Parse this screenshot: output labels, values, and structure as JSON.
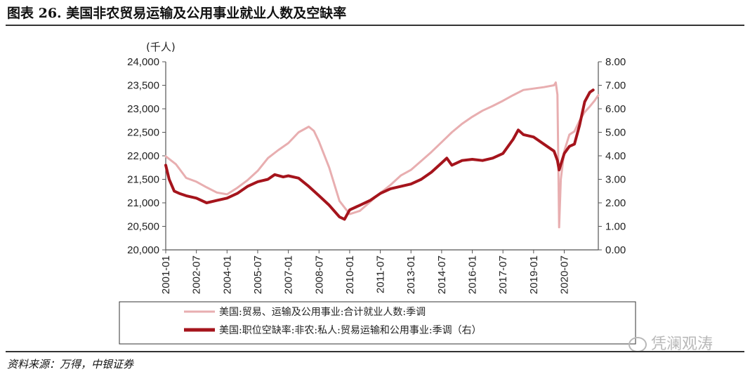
{
  "page": {
    "title": "图表 26. 美国非农贸易运输及公用事业就业人数及空缺率",
    "source": "资料来源：万得，中银证券",
    "watermark": "凭澜观涛",
    "watermark_icon": "wechat-icon"
  },
  "chart_data": {
    "type": "line",
    "y_left_unit": "(千人)",
    "y_left_range": [
      20000,
      24000
    ],
    "y_left_ticks": [
      "20,000",
      "20,500",
      "21,000",
      "21,500",
      "22,000",
      "22,500",
      "23,000",
      "23,500",
      "24,000"
    ],
    "y_right_range": [
      0,
      8
    ],
    "y_right_ticks": [
      "0.00",
      "1.00",
      "2.00",
      "3.00",
      "4.00",
      "5.00",
      "6.00",
      "7.00",
      "8.00"
    ],
    "x_range": [
      "2001-01",
      "2022-03"
    ],
    "x_ticks": [
      "2001-01",
      "2002-07",
      "2004-01",
      "2005-07",
      "2007-01",
      "2008-07",
      "2010-01",
      "2011-07",
      "2013-01",
      "2014-07",
      "2016-01",
      "2017-07",
      "2019-01",
      "2020-07"
    ],
    "series": [
      {
        "name": "美国:贸易、运输及公用事业:合计就业人数:季调",
        "axis": "left",
        "color": "#e8aeb0",
        "points": [
          [
            "2001-01",
            21990
          ],
          [
            "2001-07",
            21820
          ],
          [
            "2002-01",
            21530
          ],
          [
            "2002-07",
            21450
          ],
          [
            "2003-01",
            21330
          ],
          [
            "2003-07",
            21220
          ],
          [
            "2004-01",
            21180
          ],
          [
            "2004-07",
            21320
          ],
          [
            "2005-01",
            21480
          ],
          [
            "2005-07",
            21680
          ],
          [
            "2006-01",
            21950
          ],
          [
            "2006-07",
            22120
          ],
          [
            "2007-01",
            22270
          ],
          [
            "2007-07",
            22500
          ],
          [
            "2008-01",
            22620
          ],
          [
            "2008-04",
            22530
          ],
          [
            "2008-07",
            22300
          ],
          [
            "2009-01",
            21750
          ],
          [
            "2009-07",
            21040
          ],
          [
            "2010-01",
            20760
          ],
          [
            "2010-07",
            20830
          ],
          [
            "2011-01",
            21020
          ],
          [
            "2011-07",
            21210
          ],
          [
            "2012-01",
            21380
          ],
          [
            "2012-07",
            21580
          ],
          [
            "2013-01",
            21700
          ],
          [
            "2013-07",
            21890
          ],
          [
            "2014-01",
            22080
          ],
          [
            "2014-07",
            22290
          ],
          [
            "2015-01",
            22500
          ],
          [
            "2015-07",
            22680
          ],
          [
            "2016-01",
            22830
          ],
          [
            "2016-07",
            22960
          ],
          [
            "2017-01",
            23060
          ],
          [
            "2017-07",
            23170
          ],
          [
            "2018-01",
            23290
          ],
          [
            "2018-07",
            23400
          ],
          [
            "2019-01",
            23430
          ],
          [
            "2019-07",
            23460
          ],
          [
            "2020-01",
            23500
          ],
          [
            "2020-02",
            23560
          ],
          [
            "2020-03",
            23300
          ],
          [
            "2020-04",
            20480
          ],
          [
            "2020-05",
            21500
          ],
          [
            "2020-07",
            22100
          ],
          [
            "2020-10",
            22450
          ],
          [
            "2021-01",
            22520
          ],
          [
            "2021-04",
            22750
          ],
          [
            "2021-07",
            22930
          ],
          [
            "2021-10",
            23050
          ],
          [
            "2022-01",
            23180
          ],
          [
            "2022-03",
            23290
          ]
        ]
      },
      {
        "name": "美国:职位空缺率:非农:私人:贸易运输和公用事业:季调（右）",
        "axis": "right",
        "color": "#a5141c",
        "points": [
          [
            "2001-01",
            3.6
          ],
          [
            "2001-03",
            3.0
          ],
          [
            "2001-06",
            2.5
          ],
          [
            "2001-09",
            2.4
          ],
          [
            "2002-01",
            2.3
          ],
          [
            "2002-07",
            2.2
          ],
          [
            "2003-01",
            2.0
          ],
          [
            "2003-07",
            2.1
          ],
          [
            "2004-01",
            2.2
          ],
          [
            "2004-07",
            2.4
          ],
          [
            "2005-01",
            2.7
          ],
          [
            "2005-07",
            2.9
          ],
          [
            "2006-01",
            3.0
          ],
          [
            "2006-05",
            3.2
          ],
          [
            "2006-10",
            3.1
          ],
          [
            "2007-01",
            3.15
          ],
          [
            "2007-07",
            3.05
          ],
          [
            "2008-01",
            2.7
          ],
          [
            "2008-07",
            2.3
          ],
          [
            "2009-01",
            1.9
          ],
          [
            "2009-07",
            1.4
          ],
          [
            "2009-10",
            1.3
          ],
          [
            "2010-01",
            1.7
          ],
          [
            "2010-07",
            1.9
          ],
          [
            "2011-01",
            2.1
          ],
          [
            "2011-07",
            2.4
          ],
          [
            "2012-01",
            2.6
          ],
          [
            "2012-07",
            2.7
          ],
          [
            "2013-01",
            2.8
          ],
          [
            "2013-07",
            3.0
          ],
          [
            "2014-01",
            3.3
          ],
          [
            "2014-07",
            3.7
          ],
          [
            "2014-10",
            3.9
          ],
          [
            "2015-01",
            3.6
          ],
          [
            "2015-07",
            3.8
          ],
          [
            "2016-01",
            3.85
          ],
          [
            "2016-07",
            3.8
          ],
          [
            "2017-01",
            3.9
          ],
          [
            "2017-07",
            4.1
          ],
          [
            "2018-01",
            4.7
          ],
          [
            "2018-04",
            5.1
          ],
          [
            "2018-07",
            4.9
          ],
          [
            "2019-01",
            4.8
          ],
          [
            "2019-07",
            4.5
          ],
          [
            "2020-01",
            4.2
          ],
          [
            "2020-03",
            3.8
          ],
          [
            "2020-04",
            3.4
          ],
          [
            "2020-07",
            4.1
          ],
          [
            "2020-10",
            4.4
          ],
          [
            "2021-01",
            4.5
          ],
          [
            "2021-04",
            5.3
          ],
          [
            "2021-07",
            6.3
          ],
          [
            "2021-10",
            6.7
          ],
          [
            "2021-12",
            6.8
          ]
        ]
      }
    ],
    "grid": false,
    "legend_position": "bottom"
  }
}
